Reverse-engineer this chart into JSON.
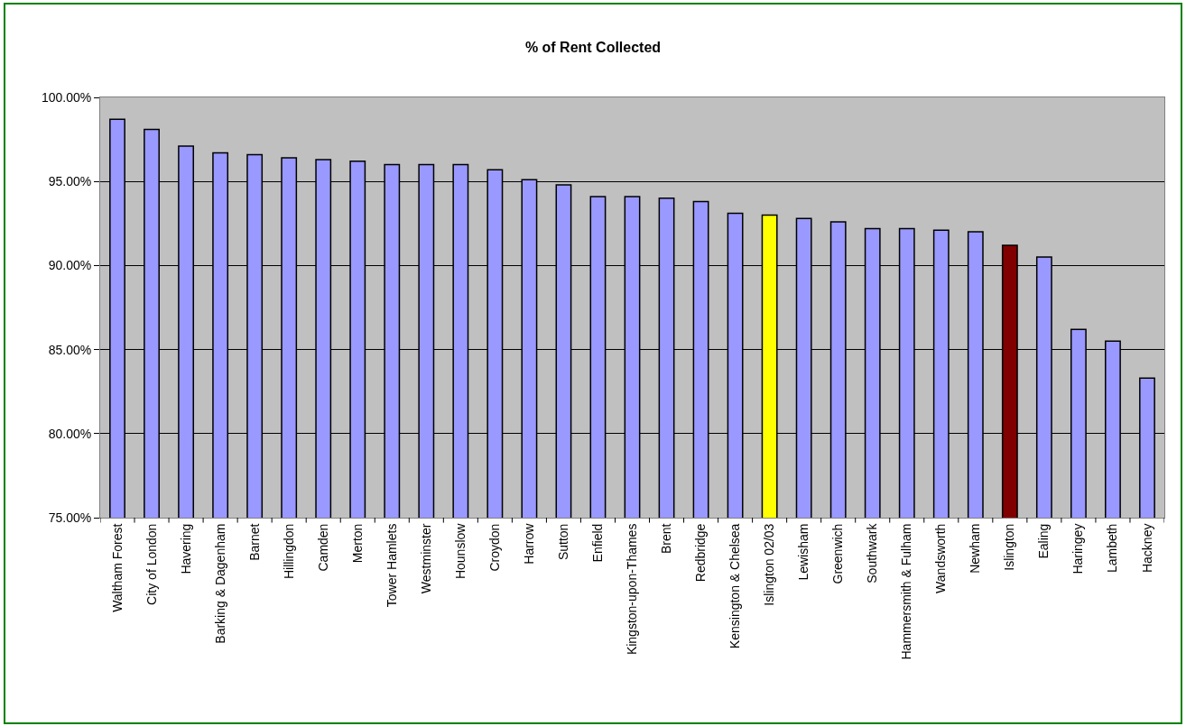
{
  "chart_data": {
    "type": "bar",
    "title": "% of Rent Collected",
    "categories": [
      "Waltham Forest",
      "City of London",
      "Havering",
      "Barking & Dagenham",
      "Barnet",
      "Hillingdon",
      "Camden",
      "Merton",
      "Tower Hamlets",
      "Westminster",
      "Hounslow",
      "Croydon",
      "Harrow",
      "Sutton",
      "Enfield",
      "Kingston-upon-Thames",
      "Brent",
      "Redbridge",
      "Kensington & Chelsea",
      "Islington 02/03",
      "Lewisham",
      "Greenwich",
      "Southwark",
      "Hammersmith & Fulham",
      "Wandsworth",
      "Newham",
      "Islington",
      "Ealing",
      "Haringey",
      "Lambeth",
      "Hackney"
    ],
    "values": [
      98.7,
      98.1,
      97.1,
      96.7,
      96.6,
      96.4,
      96.3,
      96.2,
      96.0,
      96.0,
      96.0,
      95.7,
      95.1,
      94.8,
      94.1,
      94.1,
      94.0,
      93.8,
      93.1,
      93.0,
      92.8,
      92.6,
      92.2,
      92.2,
      92.1,
      92.0,
      91.2,
      90.5,
      86.2,
      85.5,
      83.3
    ],
    "colors": [
      "#9999ff",
      "#9999ff",
      "#9999ff",
      "#9999ff",
      "#9999ff",
      "#9999ff",
      "#9999ff",
      "#9999ff",
      "#9999ff",
      "#9999ff",
      "#9999ff",
      "#9999ff",
      "#9999ff",
      "#9999ff",
      "#9999ff",
      "#9999ff",
      "#9999ff",
      "#9999ff",
      "#9999ff",
      "#ffff00",
      "#9999ff",
      "#9999ff",
      "#9999ff",
      "#9999ff",
      "#9999ff",
      "#9999ff",
      "#800000",
      "#9999ff",
      "#9999ff",
      "#9999ff",
      "#9999ff"
    ],
    "ylim": [
      75,
      100
    ],
    "yticks": [
      {
        "value": 75,
        "label": "75.00%"
      },
      {
        "value": 80,
        "label": "80.00%"
      },
      {
        "value": 85,
        "label": "85.00%"
      },
      {
        "value": 90,
        "label": "90.00%"
      },
      {
        "value": 95,
        "label": "95.00%"
      },
      {
        "value": 100,
        "label": "100.00%"
      }
    ],
    "grid": "y"
  }
}
